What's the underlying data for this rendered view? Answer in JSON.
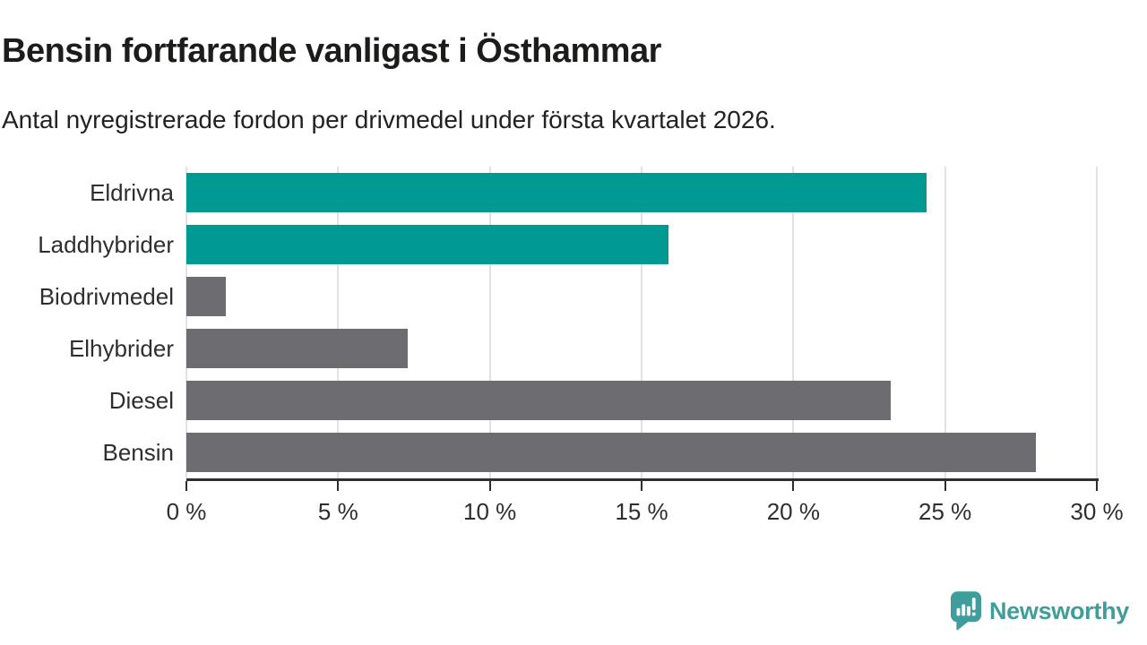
{
  "header": {
    "title": "Bensin fortfarande vanligast i Östhammar",
    "subtitle": "Antal nyregistrerade fordon per drivmedel under första kvartalet 2026."
  },
  "chart_data": {
    "type": "bar",
    "orientation": "horizontal",
    "categories": [
      "Eldrivna",
      "Laddhybrider",
      "Biodrivmedel",
      "Elhybrider",
      "Diesel",
      "Bensin"
    ],
    "values": [
      24.4,
      15.9,
      1.3,
      7.3,
      23.2,
      28.0
    ],
    "bar_colors": [
      "#009a93",
      "#009a93",
      "#6c6c71",
      "#6c6c71",
      "#6c6c71",
      "#6c6c71"
    ],
    "title": "Bensin fortfarande vanligast i Östhammar",
    "xlabel": "",
    "ylabel": "",
    "xlim": [
      0,
      30
    ],
    "x_tick_values": [
      0,
      5,
      10,
      15,
      20,
      25,
      30
    ],
    "x_tick_labels": [
      "0 %",
      "5 %",
      "10 %",
      "15 %",
      "20 %",
      "25 %",
      "30 %"
    ],
    "grid": true,
    "legend": false
  },
  "colors": {
    "accent_teal": "#009a93",
    "neutral_gray": "#6c6c71",
    "gridline": "#e2e2e2",
    "axis": "#2e2e2e",
    "logo_teal": "#3f9e9b"
  },
  "branding": {
    "logo_text": "Newsworthy",
    "logo_icon": "bar-chart-speech-bubble-icon"
  }
}
